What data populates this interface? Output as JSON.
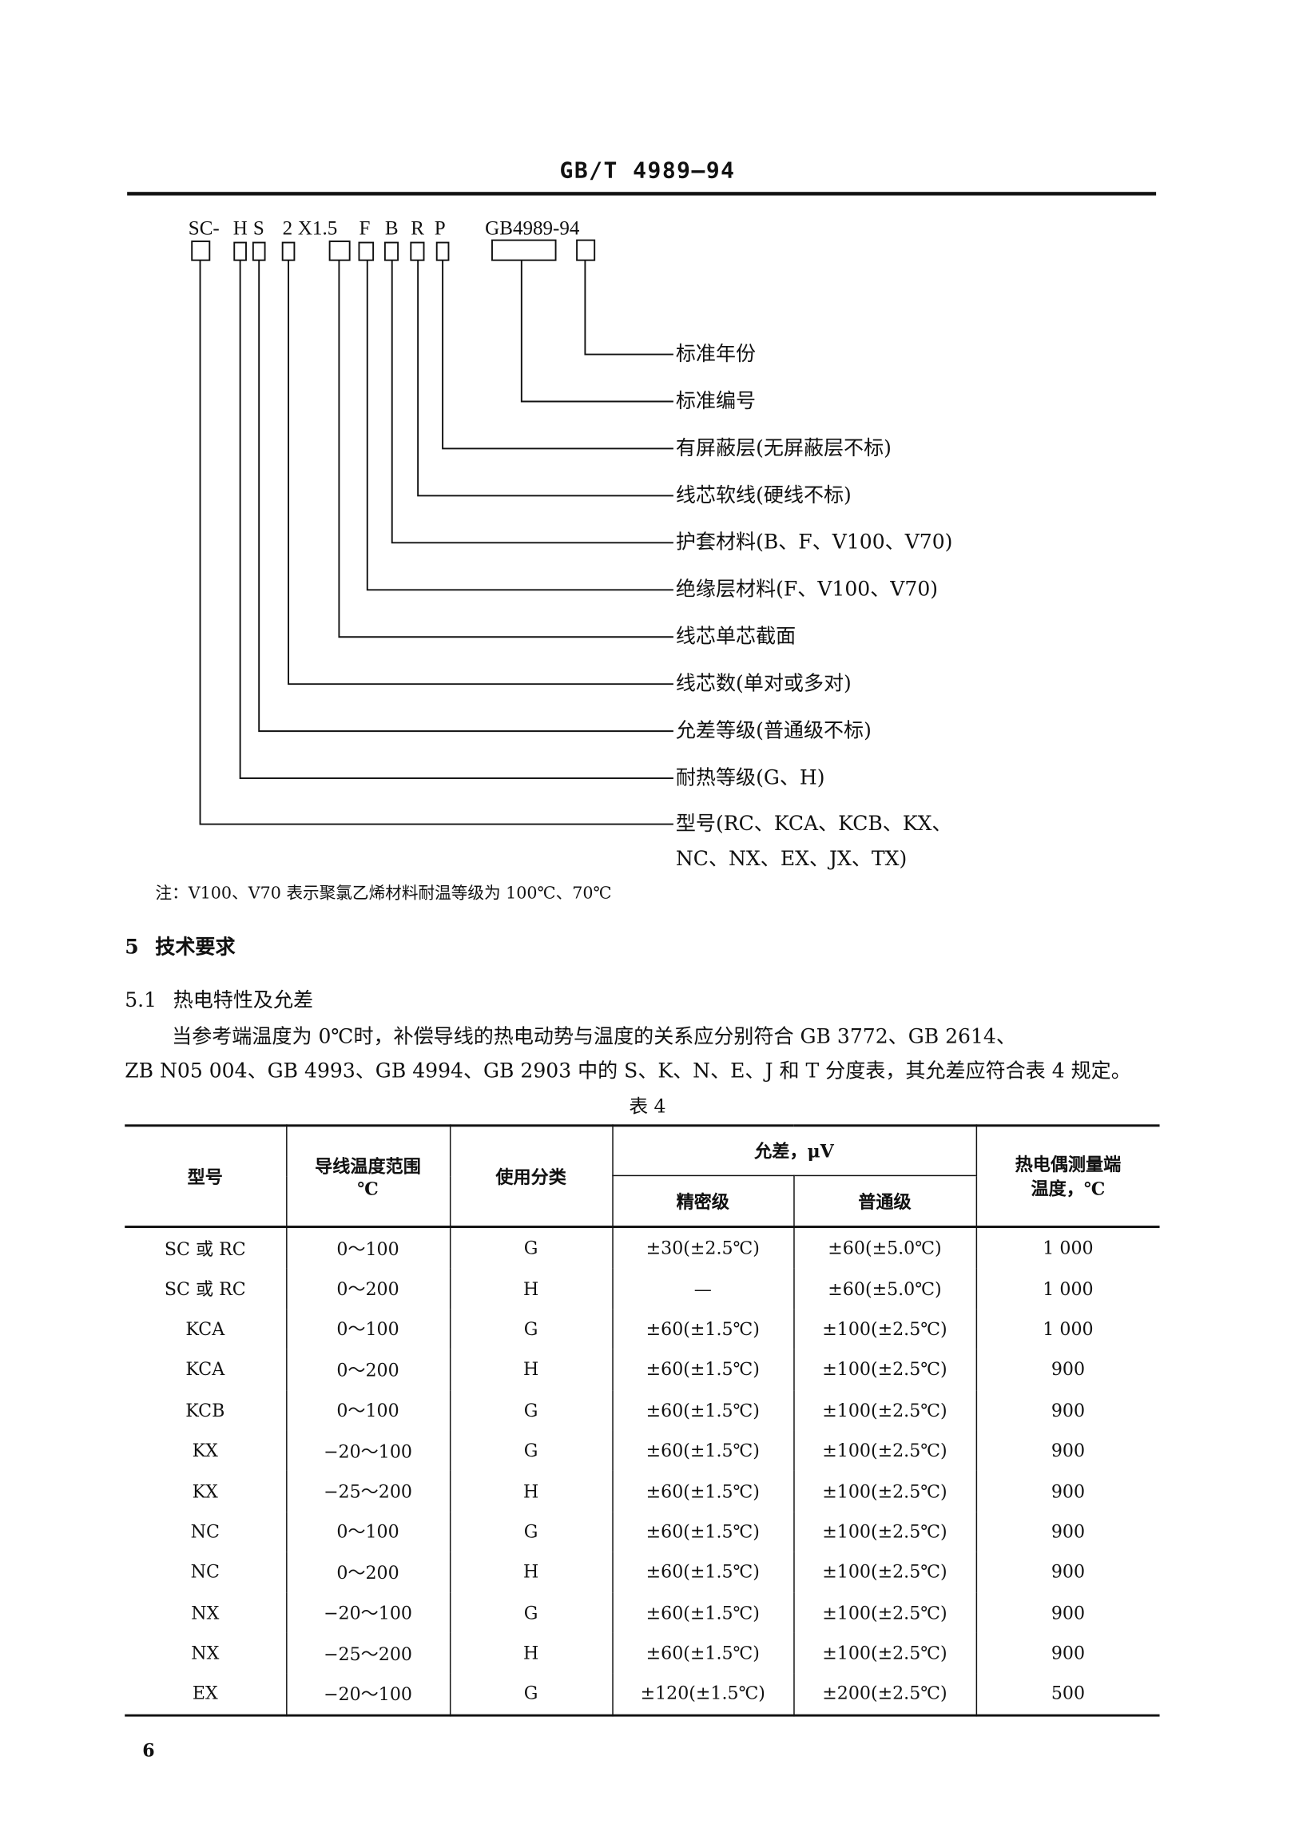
{
  "header": {
    "title": "GB/T 4989—94"
  },
  "diagram": {
    "code_parts": [
      "SC-",
      "H",
      "S",
      "2",
      "X1.5",
      "F",
      "B",
      "R",
      "P",
      "GB4989-94"
    ],
    "labels": [
      "标准年份",
      "标准编号",
      "有屏蔽层(无屏蔽层不标)",
      "线芯软线(硬线不标)",
      "护套材料(B、F、V100、V70)",
      "绝缘层材料(F、V100、V70)",
      "线芯单芯截面",
      "线芯数(单对或多对)",
      "允差等级(普通级不标)",
      "耐热等级(G、H)",
      "型号(RC、KCA、KCB、KX、"
    ],
    "label_continuation": "NC、NX、EX、JX、TX)"
  },
  "note": "注：V100、V70 表示聚氯乙烯材料耐温等级为 100℃、70℃",
  "section5": {
    "number": "5",
    "title": "技术要求"
  },
  "section51": {
    "number": "5.1",
    "title": "热电特性及允差",
    "para_line1": "当参考端温度为 0℃时，补偿导线的热电动势与温度的关系应分别符合 GB 3772、GB 2614、",
    "para_line2": "ZB N05 004、GB 4993、GB 4994、GB 2903 中的 S、K、N、E、J 和 T 分度表，其允差应符合表 4 规定。"
  },
  "table": {
    "caption": "表 4",
    "headers": {
      "model": "型号",
      "range_line1": "导线温度范围",
      "range_line2": "℃",
      "usage": "使用分类",
      "tolerance": "允差，μV",
      "precision": "精密级",
      "normal": "普通级",
      "tc_line1": "热电偶测量端",
      "tc_line2": "温度，℃"
    },
    "rows": [
      [
        "SC 或 RC",
        "0～100",
        "G",
        "±30(±2.5℃)",
        "±60(±5.0℃)",
        "1 000"
      ],
      [
        "SC 或 RC",
        "0～200",
        "H",
        "—",
        "±60(±5.0℃)",
        "1 000"
      ],
      [
        "KCA",
        "0～100",
        "G",
        "±60(±1.5℃)",
        "±100(±2.5℃)",
        "1 000"
      ],
      [
        "KCA",
        "0～200",
        "H",
        "±60(±1.5℃)",
        "±100(±2.5℃)",
        "900"
      ],
      [
        "KCB",
        "0～100",
        "G",
        "±60(±1.5℃)",
        "±100(±2.5℃)",
        "900"
      ],
      [
        "KX",
        "−20～100",
        "G",
        "±60(±1.5℃)",
        "±100(±2.5℃)",
        "900"
      ],
      [
        "KX",
        "−25～200",
        "H",
        "±60(±1.5℃)",
        "±100(±2.5℃)",
        "900"
      ],
      [
        "NC",
        "0～100",
        "G",
        "±60(±1.5℃)",
        "±100(±2.5℃)",
        "900"
      ],
      [
        "NC",
        "0～200",
        "H",
        "±60(±1.5℃)",
        "±100(±2.5℃)",
        "900"
      ],
      [
        "NX",
        "−20～100",
        "G",
        "±60(±1.5℃)",
        "±100(±2.5℃)",
        "900"
      ],
      [
        "NX",
        "−25～200",
        "H",
        "±60(±1.5℃)",
        "±100(±2.5℃)",
        "900"
      ],
      [
        "EX",
        "−20～100",
        "G",
        "±120(±1.5℃)",
        "±200(±2.5℃)",
        "500"
      ]
    ]
  },
  "page_number": "6"
}
